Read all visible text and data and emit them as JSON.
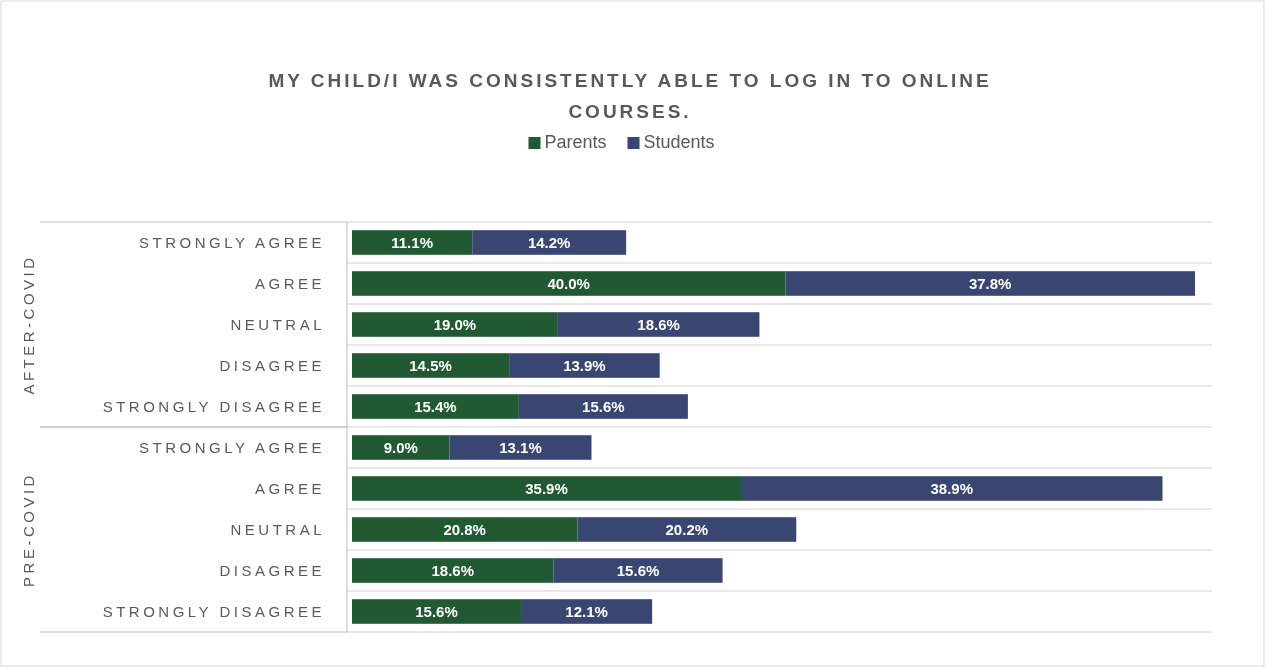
{
  "chart_data": {
    "type": "bar",
    "orientation": "horizontal",
    "stacked": true,
    "title": "MY CHILD/I WAS CONSISTENTLY ABLE TO LOG IN TO ONLINE COURSES.",
    "categories": [
      "STRONGLY AGREE",
      "AGREE",
      "NEUTRAL",
      "DISAGREE",
      "STRONGLY DISAGREE",
      "STRONGLY AGREE",
      "AGREE",
      "NEUTRAL",
      "DISAGREE",
      "STRONGLY DISAGREE"
    ],
    "annotations": [
      "AFTER-COVID",
      "PRE-COVID"
    ],
    "series": [
      {
        "name": "Parents",
        "color": "#215a32",
        "values": [
          11.1,
          40.0,
          19.0,
          14.5,
          15.4,
          9.0,
          35.9,
          20.8,
          18.6,
          15.6
        ],
        "value_labels": [
          "11.1%",
          "40.0%",
          "19.0%",
          "14.5%",
          "15.4%",
          "9.0%",
          "35.9%",
          "20.8%",
          "18.6%",
          "15.6%"
        ]
      },
      {
        "name": "Students",
        "color": "#3a4672",
        "values": [
          14.2,
          37.8,
          18.6,
          13.9,
          15.6,
          13.1,
          38.9,
          20.2,
          15.6,
          12.1
        ],
        "value_labels": [
          "14.2%",
          "37.8%",
          "18.6%",
          "13.9%",
          "15.6%",
          "13.1%",
          "38.9%",
          "20.2%",
          "15.6%",
          "12.1%"
        ]
      }
    ],
    "legend": "top",
    "grid": "y"
  }
}
